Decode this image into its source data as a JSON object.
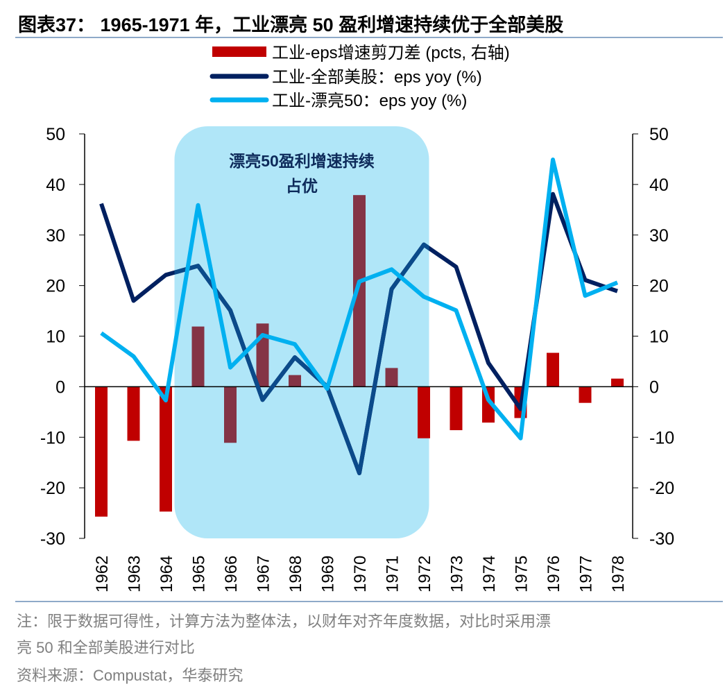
{
  "title": "图表37： 1965-1971 年，工业漂亮 50 盈利增速持续优于全部美股",
  "notes": [
    "注：限于数据可得性，计算方法为整体法，以财年对齐年度数据，对比时采用漂",
    "亮 50 和全部美股进行对比"
  ],
  "source": "资料来源：Compustat，华泰研究",
  "chart_data": {
    "type": "bar+line",
    "categories": [
      "1962",
      "1963",
      "1964",
      "1965",
      "1966",
      "1967",
      "1968",
      "1969",
      "1970",
      "1971",
      "1972",
      "1973",
      "1974",
      "1975",
      "1976",
      "1977",
      "1978"
    ],
    "ylim": [
      -30,
      50
    ],
    "y2lim": [
      -30,
      50
    ],
    "yticks": [
      50,
      40,
      30,
      20,
      10,
      0,
      -10,
      -20,
      -30
    ],
    "legend_position": "top",
    "annotation": {
      "lines": [
        "漂亮50盈利增速持续",
        "占优"
      ],
      "range": [
        "1965",
        "1971"
      ],
      "color": "#b0e6f8"
    },
    "series": [
      {
        "name": "工业-eps增速剪刀差 (pcts, 右轴)",
        "type": "bar",
        "axis": "right",
        "color": "#c00000",
        "highlight_color": "#843446",
        "values": [
          -25.7,
          -10.7,
          -24.7,
          11.9,
          -11.1,
          12.5,
          2.3,
          0,
          37.9,
          3.7,
          -10.2,
          -8.6,
          -7.1,
          -6.2,
          6.7,
          -3.2,
          1.6
        ]
      },
      {
        "name": "工业-全部美股：eps yoy (%)",
        "type": "line",
        "color": "#002060",
        "highlight_color": "#0b4a8a",
        "values": [
          36.2,
          17,
          22.1,
          23.9,
          15.1,
          -2.6,
          5.8,
          0,
          -17.1,
          19.3,
          28.1,
          23.7,
          4.7,
          -4.4,
          38.1,
          21.1,
          18.9
        ]
      },
      {
        "name": "工业-漂亮50：eps yoy (%)",
        "type": "line",
        "color": "#00b0f0",
        "values": [
          10.6,
          6,
          -2.7,
          35.9,
          3.8,
          10.2,
          8.4,
          -0.4,
          20.8,
          23.2,
          17.8,
          15.1,
          -2.6,
          -10.2,
          44.9,
          18,
          20.6
        ]
      }
    ]
  }
}
